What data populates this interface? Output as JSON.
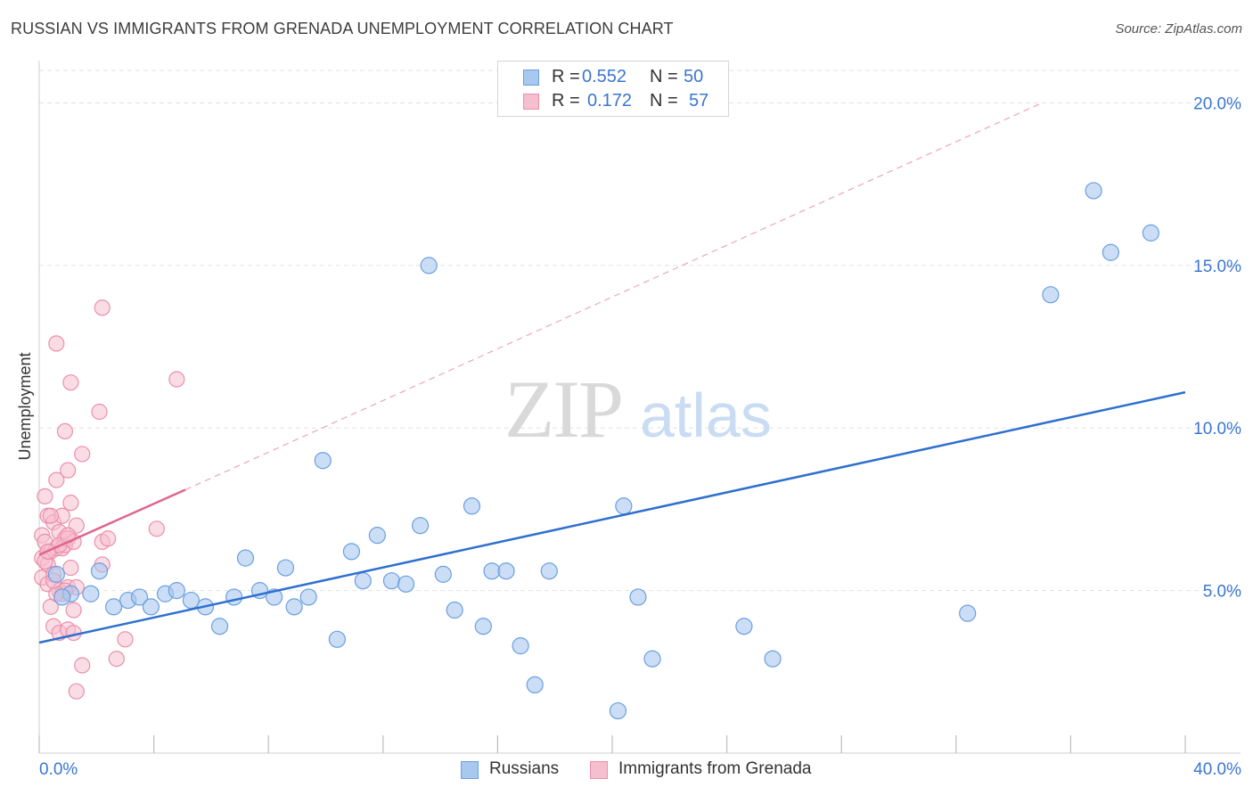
{
  "header": {
    "title": "RUSSIAN VS IMMIGRANTS FROM GRENADA UNEMPLOYMENT CORRELATION CHART",
    "source": "Source: ZipAtlas.com"
  },
  "legend": {
    "r_label": "R =",
    "n_label": "N =",
    "rows": [
      {
        "r": "0.552",
        "n": "50"
      },
      {
        "r": "0.172",
        "n": "57"
      }
    ]
  },
  "watermark": {
    "zip": "ZIP",
    "atlas": "atlas"
  },
  "colors": {
    "russians_fill": "#a9c8ef",
    "russians_stroke": "#6a9fe0",
    "russians_line": "#2e6fcf",
    "grenada_fill": "#f6bfd0",
    "grenada_stroke": "#ec8fab",
    "grenada_line": "#e0648c",
    "tick_label": "#3a76d1",
    "grid": "#e2e2e2"
  },
  "chart_data": {
    "type": "scatter",
    "title": "RUSSIAN VS IMMIGRANTS FROM GRENADA UNEMPLOYMENT CORRELATION CHART",
    "xlabel": "",
    "ylabel": "Unemployment",
    "xlim": [
      0,
      40
    ],
    "ylim": [
      0,
      21
    ],
    "x_tick_labels": [
      "0.0%",
      "40.0%"
    ],
    "y_ticks": [
      5,
      10,
      15,
      20
    ],
    "y_tick_labels": [
      "5.0%",
      "10.0%",
      "15.0%",
      "20.0%"
    ],
    "grid": true,
    "legend_position": "top-center",
    "series": [
      {
        "name": "Russians",
        "r": 0.552,
        "n": 50,
        "trend": {
          "x": [
            0,
            40
          ],
          "y": [
            3.4,
            11.1
          ]
        },
        "points": [
          [
            0.6,
            5.5
          ],
          [
            1.1,
            4.9
          ],
          [
            1.8,
            4.9
          ],
          [
            2.1,
            5.6
          ],
          [
            2.6,
            4.5
          ],
          [
            3.1,
            4.7
          ],
          [
            3.5,
            4.8
          ],
          [
            3.9,
            4.5
          ],
          [
            4.4,
            4.9
          ],
          [
            4.8,
            5.0
          ],
          [
            5.3,
            4.7
          ],
          [
            5.8,
            4.5
          ],
          [
            6.3,
            3.9
          ],
          [
            6.8,
            4.8
          ],
          [
            7.2,
            6.0
          ],
          [
            7.7,
            5.0
          ],
          [
            8.2,
            4.8
          ],
          [
            8.6,
            5.7
          ],
          [
            8.9,
            4.5
          ],
          [
            9.4,
            4.8
          ],
          [
            9.9,
            9.0
          ],
          [
            10.4,
            3.5
          ],
          [
            10.9,
            6.2
          ],
          [
            11.3,
            5.3
          ],
          [
            11.8,
            6.7
          ],
          [
            12.3,
            5.3
          ],
          [
            12.8,
            5.2
          ],
          [
            13.3,
            7.0
          ],
          [
            13.6,
            15.0
          ],
          [
            14.1,
            5.5
          ],
          [
            14.5,
            4.4
          ],
          [
            15.1,
            7.6
          ],
          [
            15.5,
            3.9
          ],
          [
            15.8,
            5.6
          ],
          [
            16.3,
            5.6
          ],
          [
            16.8,
            3.3
          ],
          [
            17.3,
            2.1
          ],
          [
            17.8,
            5.6
          ],
          [
            20.2,
            1.3
          ],
          [
            20.4,
            7.6
          ],
          [
            20.9,
            4.8
          ],
          [
            21.4,
            2.9
          ],
          [
            24.6,
            3.9
          ],
          [
            25.6,
            2.9
          ],
          [
            32.4,
            4.3
          ],
          [
            35.3,
            14.1
          ],
          [
            36.8,
            17.3
          ],
          [
            37.4,
            15.4
          ],
          [
            38.8,
            16.0
          ],
          [
            0.8,
            4.8
          ]
        ]
      },
      {
        "name": "Immigrants from Grenada",
        "r": 0.172,
        "n": 57,
        "trend": {
          "x": [
            0,
            5.1
          ],
          "y": [
            6.1,
            8.1
          ]
        },
        "trend_extended": {
          "x": [
            5.1,
            35.0
          ],
          "y": [
            8.1,
            20.0
          ]
        },
        "points": [
          [
            0.1,
            5.4
          ],
          [
            0.1,
            6.7
          ],
          [
            0.1,
            6.0
          ],
          [
            0.2,
            7.9
          ],
          [
            0.2,
            6.5
          ],
          [
            0.3,
            5.8
          ],
          [
            0.3,
            7.3
          ],
          [
            0.3,
            5.2
          ],
          [
            0.4,
            4.5
          ],
          [
            0.4,
            6.2
          ],
          [
            0.5,
            3.9
          ],
          [
            0.5,
            7.1
          ],
          [
            0.5,
            5.5
          ],
          [
            0.6,
            6.3
          ],
          [
            0.6,
            8.4
          ],
          [
            0.6,
            12.6
          ],
          [
            0.7,
            6.8
          ],
          [
            0.7,
            5.0
          ],
          [
            0.7,
            3.7
          ],
          [
            0.8,
            7.3
          ],
          [
            0.8,
            6.3
          ],
          [
            0.8,
            4.9
          ],
          [
            0.9,
            6.6
          ],
          [
            0.9,
            9.9
          ],
          [
            0.9,
            6.4
          ],
          [
            1.0,
            5.1
          ],
          [
            1.0,
            8.7
          ],
          [
            1.0,
            3.8
          ],
          [
            1.0,
            6.6
          ],
          [
            1.1,
            7.7
          ],
          [
            1.1,
            5.7
          ],
          [
            1.1,
            11.4
          ],
          [
            1.2,
            6.5
          ],
          [
            1.2,
            3.7
          ],
          [
            1.2,
            4.4
          ],
          [
            1.3,
            7.0
          ],
          [
            1.3,
            5.1
          ],
          [
            1.5,
            9.2
          ],
          [
            1.5,
            2.7
          ],
          [
            1.3,
            1.9
          ],
          [
            2.1,
            10.5
          ],
          [
            2.2,
            5.8
          ],
          [
            2.2,
            6.5
          ],
          [
            2.2,
            13.7
          ],
          [
            2.4,
            6.6
          ],
          [
            2.7,
            2.9
          ],
          [
            3.0,
            3.5
          ],
          [
            4.1,
            6.9
          ],
          [
            4.8,
            11.5
          ],
          [
            0.2,
            5.9
          ],
          [
            0.4,
            7.3
          ],
          [
            0.7,
            6.4
          ],
          [
            0.9,
            5.0
          ],
          [
            0.3,
            6.2
          ],
          [
            0.6,
            4.9
          ],
          [
            1.0,
            6.7
          ],
          [
            0.5,
            5.3
          ]
        ]
      }
    ]
  },
  "bottom_legend": [
    {
      "label": "Russians"
    },
    {
      "label": "Immigrants from Grenada"
    }
  ]
}
